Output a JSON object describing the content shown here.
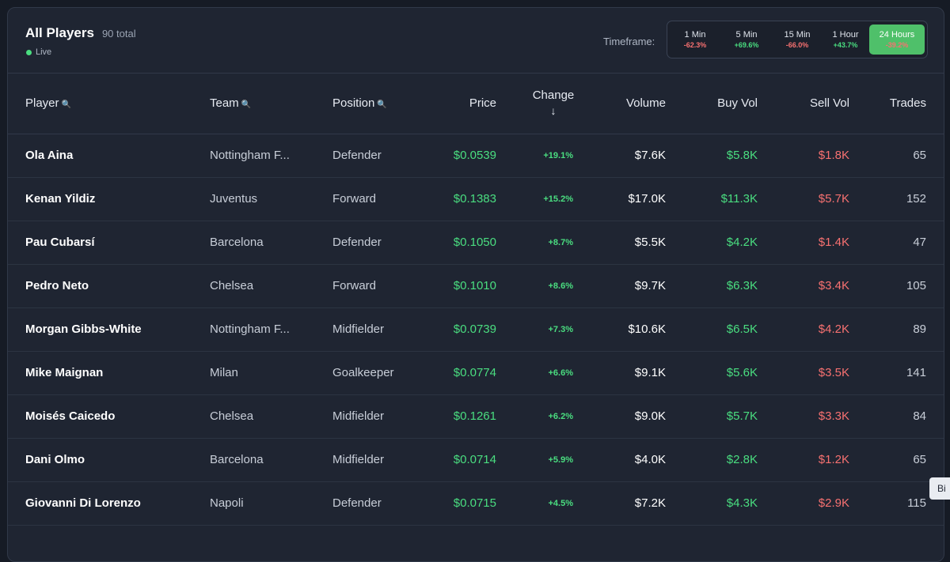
{
  "header": {
    "title": "All Players",
    "total": "90 total",
    "live": "Live",
    "timeframe_label": "Timeframe:"
  },
  "timeframes": [
    {
      "label": "1 Min",
      "change": "-62.3%",
      "sign": "neg",
      "active": false
    },
    {
      "label": "5 Min",
      "change": "+69.6%",
      "sign": "pos",
      "active": false
    },
    {
      "label": "15 Min",
      "change": "-66.0%",
      "sign": "neg",
      "active": false
    },
    {
      "label": "1 Hour",
      "change": "+43.7%",
      "sign": "pos",
      "active": false
    },
    {
      "label": "24 Hours",
      "change": "-39.2%",
      "sign": "neg",
      "active": true
    }
  ],
  "columns": {
    "player": "Player",
    "team": "Team",
    "position": "Position",
    "price": "Price",
    "change": "Change",
    "change_arrow": "↓",
    "volume": "Volume",
    "buy_vol": "Buy Vol",
    "sell_vol": "Sell Vol",
    "trades": "Trades",
    "search_icon": "🔍"
  },
  "rows": [
    {
      "player": "Ola Aina",
      "team": "Nottingham F...",
      "position": "Defender",
      "price": "$0.0539",
      "change": "+19.1%",
      "volume": "$7.6K",
      "buy": "$5.8K",
      "sell": "$1.8K",
      "trades": "65"
    },
    {
      "player": "Kenan Yildiz",
      "team": "Juventus",
      "position": "Forward",
      "price": "$0.1383",
      "change": "+15.2%",
      "volume": "$17.0K",
      "buy": "$11.3K",
      "sell": "$5.7K",
      "trades": "152"
    },
    {
      "player": "Pau Cubarsí",
      "team": "Barcelona",
      "position": "Defender",
      "price": "$0.1050",
      "change": "+8.7%",
      "volume": "$5.5K",
      "buy": "$4.2K",
      "sell": "$1.4K",
      "trades": "47"
    },
    {
      "player": "Pedro Neto",
      "team": "Chelsea",
      "position": "Forward",
      "price": "$0.1010",
      "change": "+8.6%",
      "volume": "$9.7K",
      "buy": "$6.3K",
      "sell": "$3.4K",
      "trades": "105"
    },
    {
      "player": "Morgan Gibbs-White",
      "team": "Nottingham F...",
      "position": "Midfielder",
      "price": "$0.0739",
      "change": "+7.3%",
      "volume": "$10.6K",
      "buy": "$6.5K",
      "sell": "$4.2K",
      "trades": "89"
    },
    {
      "player": "Mike Maignan",
      "team": "Milan",
      "position": "Goalkeeper",
      "price": "$0.0774",
      "change": "+6.6%",
      "volume": "$9.1K",
      "buy": "$5.6K",
      "sell": "$3.5K",
      "trades": "141"
    },
    {
      "player": "Moisés Caicedo",
      "team": "Chelsea",
      "position": "Midfielder",
      "price": "$0.1261",
      "change": "+6.2%",
      "volume": "$9.0K",
      "buy": "$5.7K",
      "sell": "$3.3K",
      "trades": "84"
    },
    {
      "player": "Dani Olmo",
      "team": "Barcelona",
      "position": "Midfielder",
      "price": "$0.0714",
      "change": "+5.9%",
      "volume": "$4.0K",
      "buy": "$2.8K",
      "sell": "$1.2K",
      "trades": "65"
    },
    {
      "player": "Giovanni Di Lorenzo",
      "team": "Napoli",
      "position": "Defender",
      "price": "$0.0715",
      "change": "+4.5%",
      "volume": "$7.2K",
      "buy": "$4.3K",
      "sell": "$2.9K",
      "trades": "115"
    }
  ],
  "tooltip": "Bi",
  "colors": {
    "positive": "#4ade80",
    "negative": "#f87171",
    "active": "#4fc06a",
    "panel": "#1f2532"
  }
}
